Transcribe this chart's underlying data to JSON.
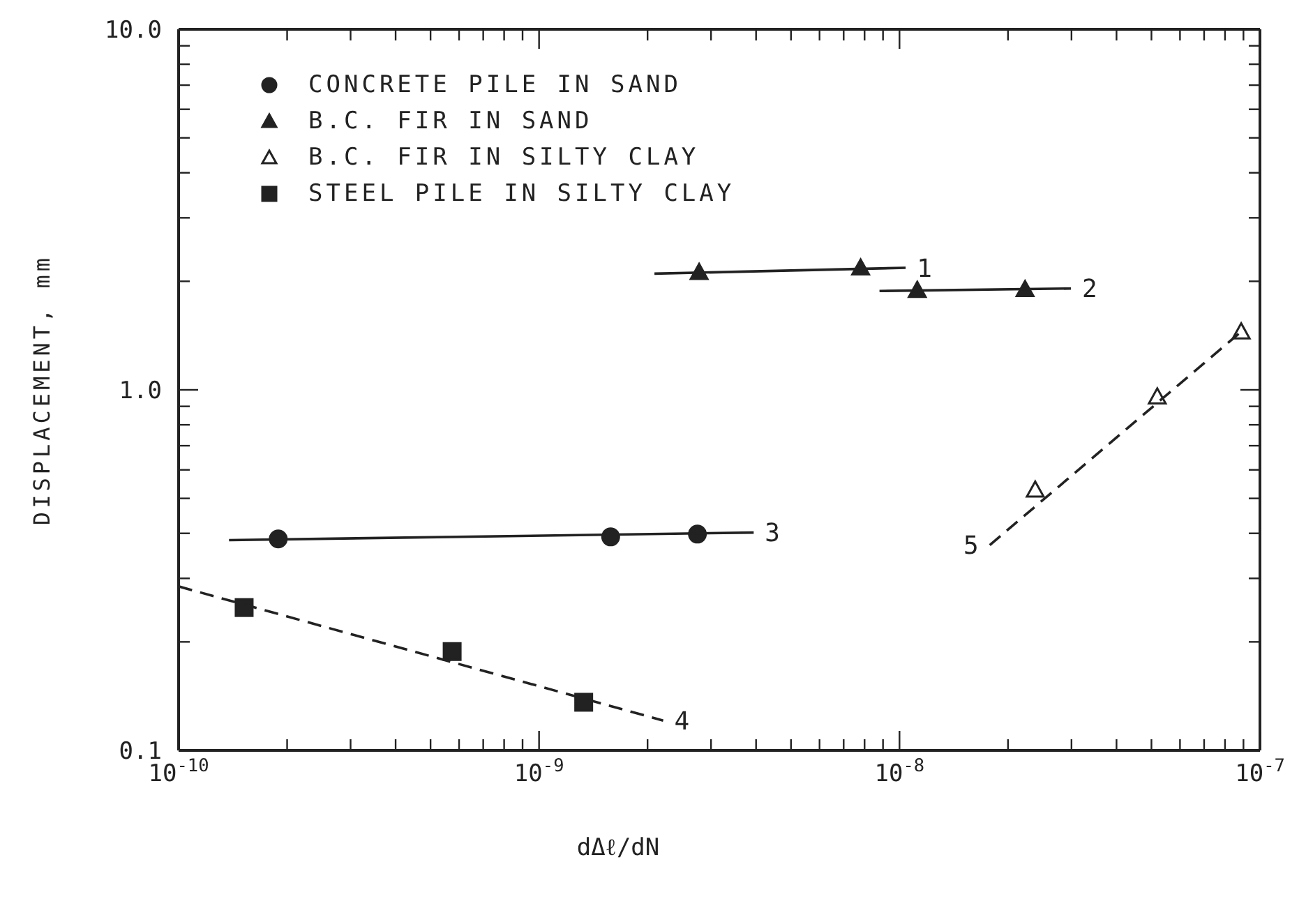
{
  "chart_data": {
    "type": "scatter",
    "xlabel": "dΔℓ/dN",
    "ylabel": "DISPLACEMENT, mm",
    "log": "xy",
    "legend": "top left",
    "xlim": [
      1e-10,
      1e-07
    ],
    "ylim": [
      0.1,
      10
    ],
    "xticks": [
      {
        "value": 1e-10,
        "label": "10$^{-10}$"
      },
      {
        "value": 2e-10,
        "label": null
      },
      {
        "value": 3e-10,
        "label": null
      },
      {
        "value": 4e-10,
        "label": null
      },
      {
        "value": 5e-10,
        "label": null
      },
      {
        "value": 6e-10,
        "label": null
      },
      {
        "value": 7e-10,
        "label": null
      },
      {
        "value": 8e-10,
        "label": null
      },
      {
        "value": 9e-10,
        "label": null
      },
      {
        "value": 1e-09,
        "label": "10$^{-9}$"
      },
      {
        "value": 2e-09,
        "label": null
      },
      {
        "value": 3e-09,
        "label": null
      },
      {
        "value": 4e-09,
        "label": null
      },
      {
        "value": 5e-09,
        "label": null
      },
      {
        "value": 6e-09,
        "label": null
      },
      {
        "value": 7e-09,
        "label": null
      },
      {
        "value": 8e-09,
        "label": null
      },
      {
        "value": 9e-09,
        "label": null
      },
      {
        "value": 1e-08,
        "label": "10$^{-8}$"
      },
      {
        "value": 2e-08,
        "label": null
      },
      {
        "value": 3e-08,
        "label": null
      },
      {
        "value": 4e-08,
        "label": null
      },
      {
        "value": 5e-08,
        "label": null
      },
      {
        "value": 6e-08,
        "label": null
      },
      {
        "value": 7e-08,
        "label": null
      },
      {
        "value": 8e-08,
        "label": null
      },
      {
        "value": 9e-08,
        "label": null
      },
      {
        "value": 1e-07,
        "label": "10$^{-7}$"
      }
    ],
    "yticks": [
      {
        "value": 0.1,
        "label": "0.1"
      },
      {
        "value": 0.2,
        "label": null
      },
      {
        "value": 0.3,
        "label": null
      },
      {
        "value": 0.4,
        "label": null
      },
      {
        "value": 0.5,
        "label": null
      },
      {
        "value": 0.6,
        "label": null
      },
      {
        "value": 0.7,
        "label": null
      },
      {
        "value": 0.8,
        "label": null
      },
      {
        "value": 0.9,
        "label": null
      },
      {
        "value": 1,
        "label": "1.0"
      },
      {
        "value": 2,
        "label": null
      },
      {
        "value": 3,
        "label": null
      },
      {
        "value": 4,
        "label": null
      },
      {
        "value": 5,
        "label": null
      },
      {
        "value": 6,
        "label": null
      },
      {
        "value": 7,
        "label": null
      },
      {
        "value": 8,
        "label": null
      },
      {
        "value": 9,
        "label": null
      },
      {
        "value": 10,
        "label": "10.0"
      }
    ],
    "series": [
      {
        "name": "CONCRETE PILE IN SAND",
        "color": "#222222",
        "marker": "circle",
        "x": [
          1.89e-10,
          1.58e-09,
          2.75e-09
        ],
        "values": [
          0.386,
          0.391,
          0.398
        ]
      },
      {
        "name": "B.C. FIR IN SAND",
        "color": "#222222",
        "marker": "triangle",
        "x": [
          2.78e-09,
          7.8e-09,
          1.12e-08,
          2.23e-08
        ],
        "values": [
          2.12,
          2.18,
          1.89,
          1.9
        ]
      },
      {
        "name": "B.C. FIR IN SILTY CLAY",
        "color": "#ffffff",
        "marker": "triangle",
        "x": [
          2.38e-08,
          5.19e-08,
          8.87e-08
        ],
        "values": [
          0.528,
          0.957,
          1.45
        ]
      },
      {
        "name": "STEEL PILE IN SILTY CLAY",
        "color": "#222222",
        "marker": "square",
        "x": [
          1.52e-10,
          5.74e-10,
          1.33e-09
        ],
        "values": [
          0.249,
          0.188,
          0.136
        ]
      },
      {
        "type": "line",
        "color": "#222222",
        "marker": "none",
        "line_style": "solid",
        "x": [
          2.09e-09,
          1.04e-08
        ],
        "values": [
          2.1,
          2.18
        ]
      },
      {
        "type": "line",
        "color": "#222222",
        "marker": "none",
        "line_style": "solid",
        "x": [
          8.8e-09,
          2.99e-08
        ],
        "values": [
          1.88,
          1.91
        ]
      },
      {
        "type": "line",
        "color": "#222222",
        "marker": "none",
        "line_style": "solid",
        "x": [
          1.38e-10,
          3.94e-09
        ],
        "values": [
          0.383,
          0.402
        ]
      },
      {
        "type": "line",
        "color": "#222222",
        "marker": "none",
        "line_style": "dashed",
        "x": [
          1e-10,
          2.21e-09
        ],
        "values": [
          0.285,
          0.121
        ]
      },
      {
        "type": "line",
        "color": "#222222",
        "marker": "none",
        "line_style": "dashed",
        "x": [
          1.78e-08,
          8.87e-08
        ],
        "values": [
          0.371,
          1.45
        ]
      }
    ],
    "annotations": [
      {
        "text": "1",
        "x": 1.04e-08,
        "y": 2.18
      },
      {
        "text": "2",
        "x": 2.99e-08,
        "y": 1.91
      },
      {
        "text": "3",
        "x": 3.94e-09,
        "y": 0.402
      },
      {
        "text": "4",
        "x": 2.21e-09,
        "y": 0.121
      },
      {
        "text": "5",
        "x": 1.78e-08,
        "y": 0.371
      }
    ]
  }
}
